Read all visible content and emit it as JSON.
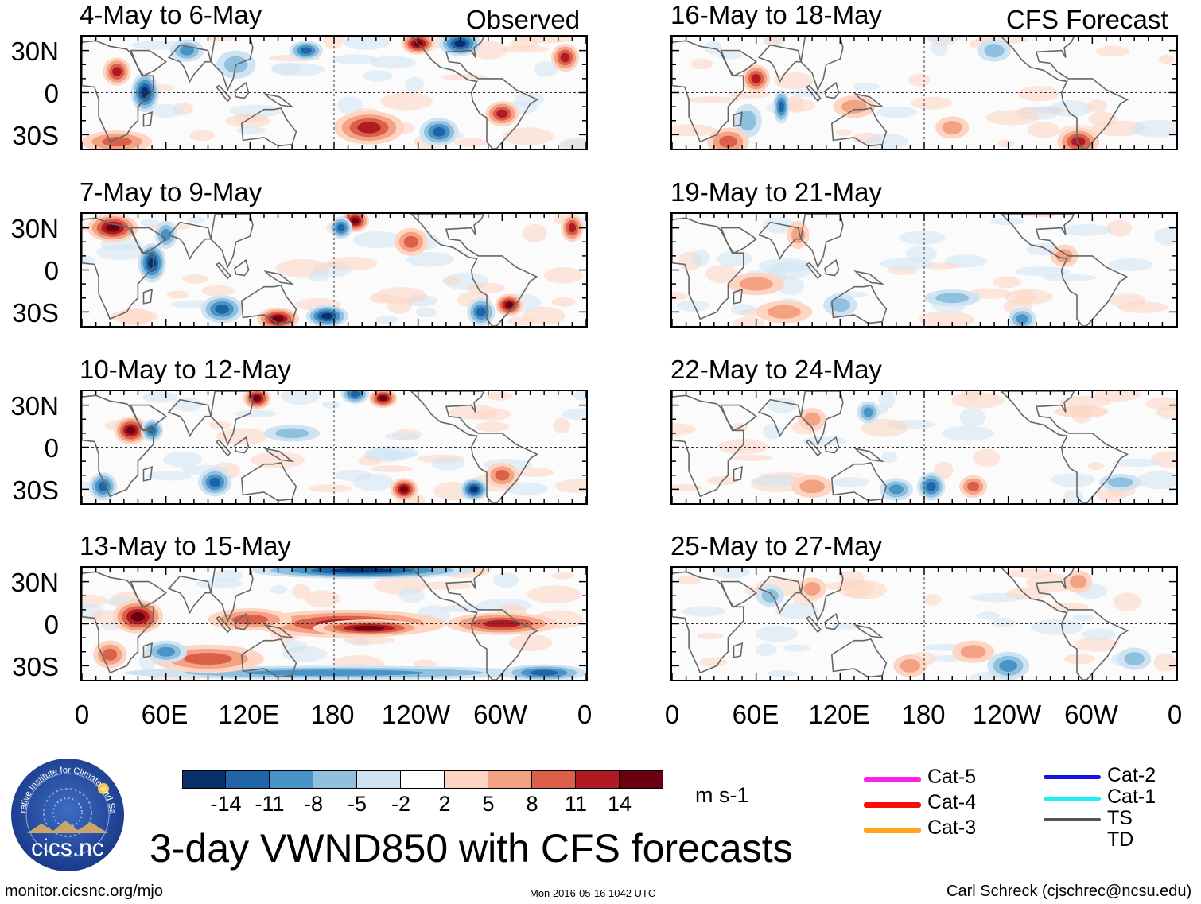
{
  "panel_titles": {
    "obs": [
      "4-May to 6-May",
      "7-May to 9-May",
      "10-May to 12-May",
      "13-May to 15-May"
    ],
    "fcst": [
      "16-May to 18-May",
      "19-May to 21-May",
      "22-May to 24-May",
      "25-May to 27-May"
    ]
  },
  "column_labels": {
    "observed": "Observed",
    "forecast": "CFS Forecast"
  },
  "y_ticks": [
    "30N",
    "0",
    "30S"
  ],
  "x_ticks": [
    "0",
    "60E",
    "120E",
    "180",
    "120W",
    "60W",
    "0"
  ],
  "colorbar": {
    "colors": [
      "#08306b",
      "#1f63a8",
      "#4a93c6",
      "#8fc0de",
      "#cfe3f2",
      "#ffffff",
      "#fdd5c2",
      "#f3a283",
      "#dc6049",
      "#b01a22",
      "#6b0010"
    ],
    "labels": [
      "-14",
      "-11",
      "-8",
      "-5",
      "-2",
      "2",
      "5",
      "8",
      "11",
      "14"
    ],
    "units": "m s-1"
  },
  "legend": {
    "left": [
      {
        "label": "Cat-5",
        "color": "#ff1fe8"
      },
      {
        "label": "Cat-4",
        "color": "#ff0a0a"
      },
      {
        "label": "Cat-3",
        "color": "#ffa31a"
      }
    ],
    "right": [
      {
        "label": "Cat-2",
        "color": "#1414e6"
      },
      {
        "label": "Cat-1",
        "color": "#1ff0f0"
      },
      {
        "label": "TS",
        "color": "#555555"
      },
      {
        "label": "TD",
        "color": "#aaaaaa"
      }
    ]
  },
  "logo": {
    "text": "cics.nc",
    "ring_text": "Cooperative Institute for Climate and Satellites"
  },
  "main_title": "3-day VWND850 with CFS forecasts",
  "footer": {
    "left": "monitor.cicsnc.org/mjo",
    "center": "Mon 2016-05-16 1042 UTC",
    "right": "Carl Schreck (cjschrec@ncsu.edu)"
  }
}
